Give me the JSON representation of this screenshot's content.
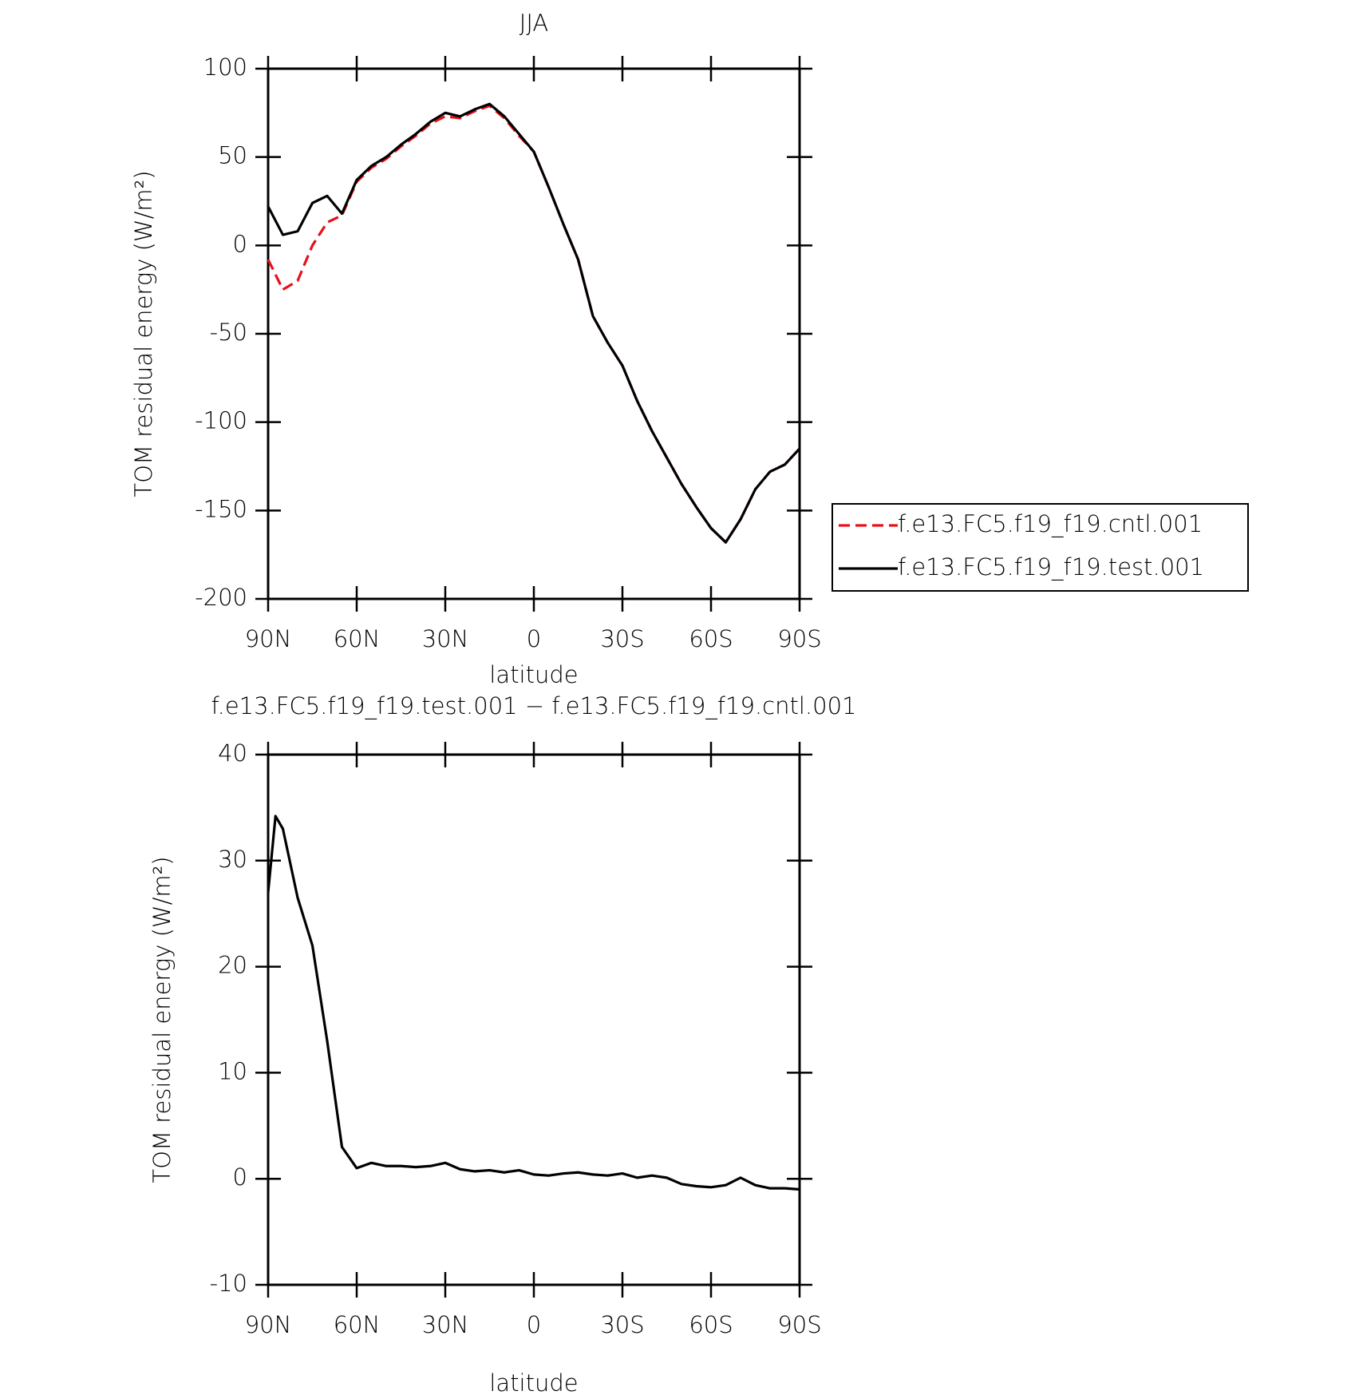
{
  "chart_data": [
    {
      "type": "line",
      "title": "JJA",
      "xlabel": "latitude",
      "ylabel": "TOM residual energy (W/m²)",
      "x": [
        90,
        85,
        80,
        75,
        70,
        65,
        60,
        55,
        50,
        45,
        40,
        35,
        30,
        25,
        20,
        15,
        10,
        5,
        0,
        -5,
        -10,
        -15,
        -20,
        -25,
        -30,
        -35,
        -40,
        -45,
        -50,
        -55,
        -60,
        -65,
        -70,
        -75,
        -80,
        -85,
        -90
      ],
      "xlim": [
        90,
        -90
      ],
      "xticks": [
        {
          "value": 90,
          "label": "90N"
        },
        {
          "value": 60,
          "label": "60N"
        },
        {
          "value": 30,
          "label": "30N"
        },
        0,
        {
          "value": -30,
          "label": "30S"
        },
        {
          "value": -60,
          "label": "60S"
        },
        {
          "value": -90,
          "label": "90S"
        }
      ],
      "ylim": [
        -200,
        100
      ],
      "yticks": [
        -200,
        -150,
        -100,
        -50,
        0,
        50,
        100
      ],
      "legend": "right",
      "series": [
        {
          "name": "f.e13.FC5.f19_f19.cntl.001",
          "color": "#e8101a",
          "linestyle": "dashed",
          "values": [
            -8,
            -25,
            -20,
            0,
            13,
            17,
            36,
            44,
            49,
            56,
            62,
            69,
            73,
            72,
            76,
            79,
            72,
            62,
            53,
            33,
            12,
            -8,
            -40,
            -55,
            -68,
            -88,
            -105,
            -120,
            -135,
            -148,
            -160,
            -168,
            -155,
            -138,
            -128,
            -124,
            -115
          ]
        },
        {
          "name": "f.e13.FC5.f19_f19.test.001",
          "color": "#000000",
          "linestyle": "solid",
          "values": [
            22,
            6,
            8,
            24,
            28,
            18,
            37,
            45,
            50,
            57,
            63,
            70,
            75,
            73,
            77,
            80,
            73,
            63,
            53,
            33,
            12,
            -8,
            -40,
            -55,
            -68,
            -88,
            -105,
            -120,
            -135,
            -148,
            -160,
            -168,
            -155,
            -138,
            -128,
            -124,
            -115
          ]
        }
      ]
    },
    {
      "type": "line",
      "title": "f.e13.FC5.f19_f19.test.001 − f.e13.FC5.f19_f19.cntl.001",
      "xlabel": "latitude",
      "ylabel": "TOM residual energy (W/m²)",
      "x": [
        90,
        87.5,
        85,
        80,
        75,
        70,
        65,
        60,
        55,
        50,
        45,
        40,
        35,
        30,
        25,
        20,
        15,
        10,
        5,
        0,
        -5,
        -10,
        -15,
        -20,
        -25,
        -30,
        -35,
        -40,
        -45,
        -50,
        -55,
        -60,
        -65,
        -70,
        -75,
        -80,
        -85,
        -90
      ],
      "xlim": [
        90,
        -90
      ],
      "xticks": [
        {
          "value": 90,
          "label": "90N"
        },
        {
          "value": 60,
          "label": "60N"
        },
        {
          "value": 30,
          "label": "30N"
        },
        0,
        {
          "value": -30,
          "label": "30S"
        },
        {
          "value": -60,
          "label": "60S"
        },
        {
          "value": -90,
          "label": "90S"
        }
      ],
      "ylim": [
        -10,
        40
      ],
      "yticks": [
        -10,
        0,
        10,
        20,
        30,
        40
      ],
      "series": [
        {
          "color": "#000000",
          "linestyle": "solid",
          "values": [
            27,
            34.2,
            33,
            26.5,
            22,
            13,
            3,
            1,
            1.5,
            1.2,
            1.2,
            1.1,
            1.2,
            1.5,
            0.9,
            0.7,
            0.8,
            0.6,
            0.8,
            0.4,
            0.3,
            0.5,
            0.6,
            0.4,
            0.3,
            0.5,
            0.1,
            0.3,
            0.1,
            -0.5,
            -0.7,
            -0.8,
            -0.6,
            0.1,
            -0.6,
            -0.9,
            -0.9,
            -1.0
          ]
        }
      ]
    }
  ]
}
